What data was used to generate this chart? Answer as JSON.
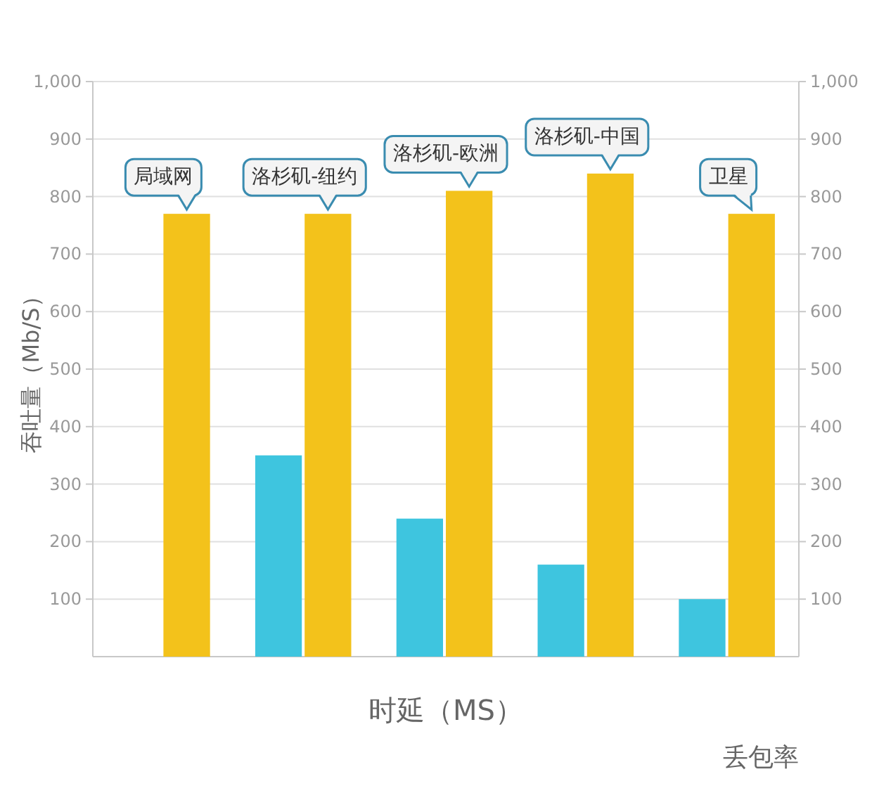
{
  "chart_data": {
    "type": "bar",
    "categories": [
      "局域网",
      "洛杉矶-纽约",
      "洛杉矶-欧洲",
      "洛杉矶-中国",
      "卫星"
    ],
    "series": [
      {
        "color": "#3ec5df",
        "values": [
          null,
          350,
          240,
          160,
          100
        ]
      },
      {
        "color": "#f3c21b",
        "values": [
          770,
          770,
          810,
          840,
          770
        ]
      }
    ],
    "xlabel": "时延（MS）",
    "ylabel": "吞吐量（Mb/S）",
    "annotations": [
      "丢包率"
    ],
    "ylim": [
      0,
      1000
    ],
    "yticks": [
      100,
      200,
      300,
      400,
      500,
      600,
      700,
      800,
      900,
      {
        "value": 1000,
        "label": "1,000"
      }
    ],
    "y2lim": [
      0,
      1000
    ],
    "y2ticks": [
      100,
      200,
      300,
      400,
      500,
      600,
      700,
      800,
      900,
      {
        "value": 1000,
        "label": "1,000"
      }
    ],
    "grid": "y"
  }
}
